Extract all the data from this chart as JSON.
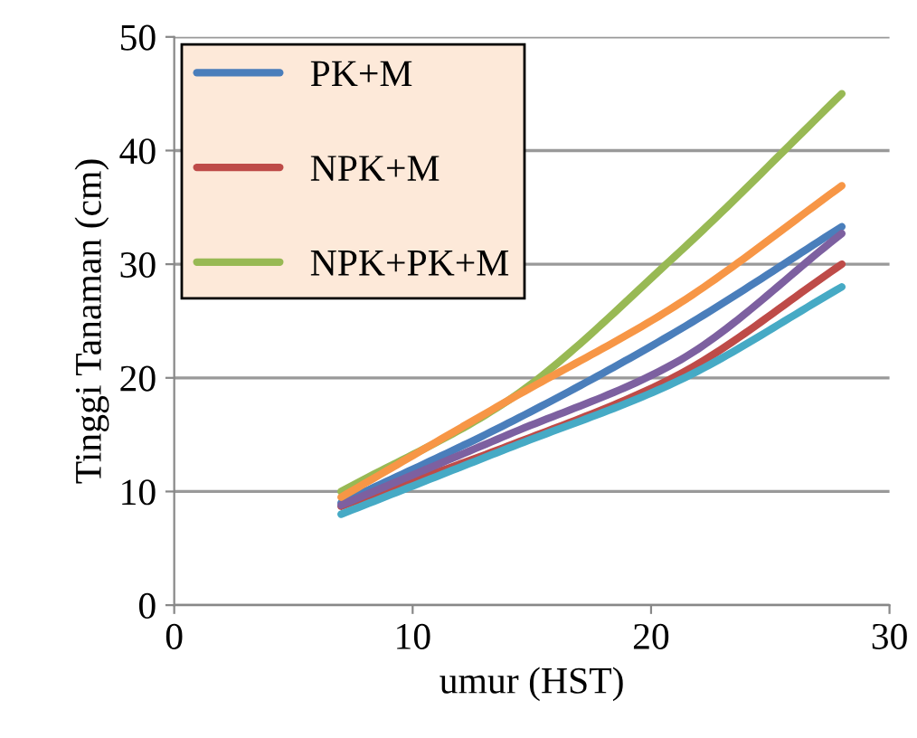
{
  "chart_data": {
    "type": "line",
    "xlabel": "umur (HST)",
    "ylabel": "Tinggi Tanaman (cm)",
    "x": [
      7,
      14,
      21,
      28
    ],
    "series": [
      {
        "name": "PK+M",
        "color": "#4a7ebb",
        "values": [
          9,
          16,
          24,
          33.3
        ]
      },
      {
        "name": "NPK+M",
        "color": "#be4b48",
        "values": [
          8.7,
          14,
          20.1,
          30
        ]
      },
      {
        "name": "NPK+PK+M",
        "color": "#98b954",
        "values": [
          10,
          18,
          30.7,
          45
        ]
      },
      {
        "color": "#7d60a0",
        "values": [
          8.8,
          15,
          21.3,
          32.7
        ]
      },
      {
        "color": "#46aac5",
        "values": [
          8,
          13.8,
          19.6,
          28
        ]
      },
      {
        "color": "#f79646",
        "values": [
          9.5,
          18,
          26.3,
          36.9
        ]
      }
    ],
    "xlim": [
      0,
      30
    ],
    "xticks": [
      0,
      10,
      20,
      30
    ],
    "ylim": [
      0,
      50
    ],
    "yticks": [
      0,
      10,
      20,
      30,
      40,
      50
    ],
    "grid": "y",
    "legend": "top left",
    "marker": "none",
    "line_style": "solid"
  }
}
